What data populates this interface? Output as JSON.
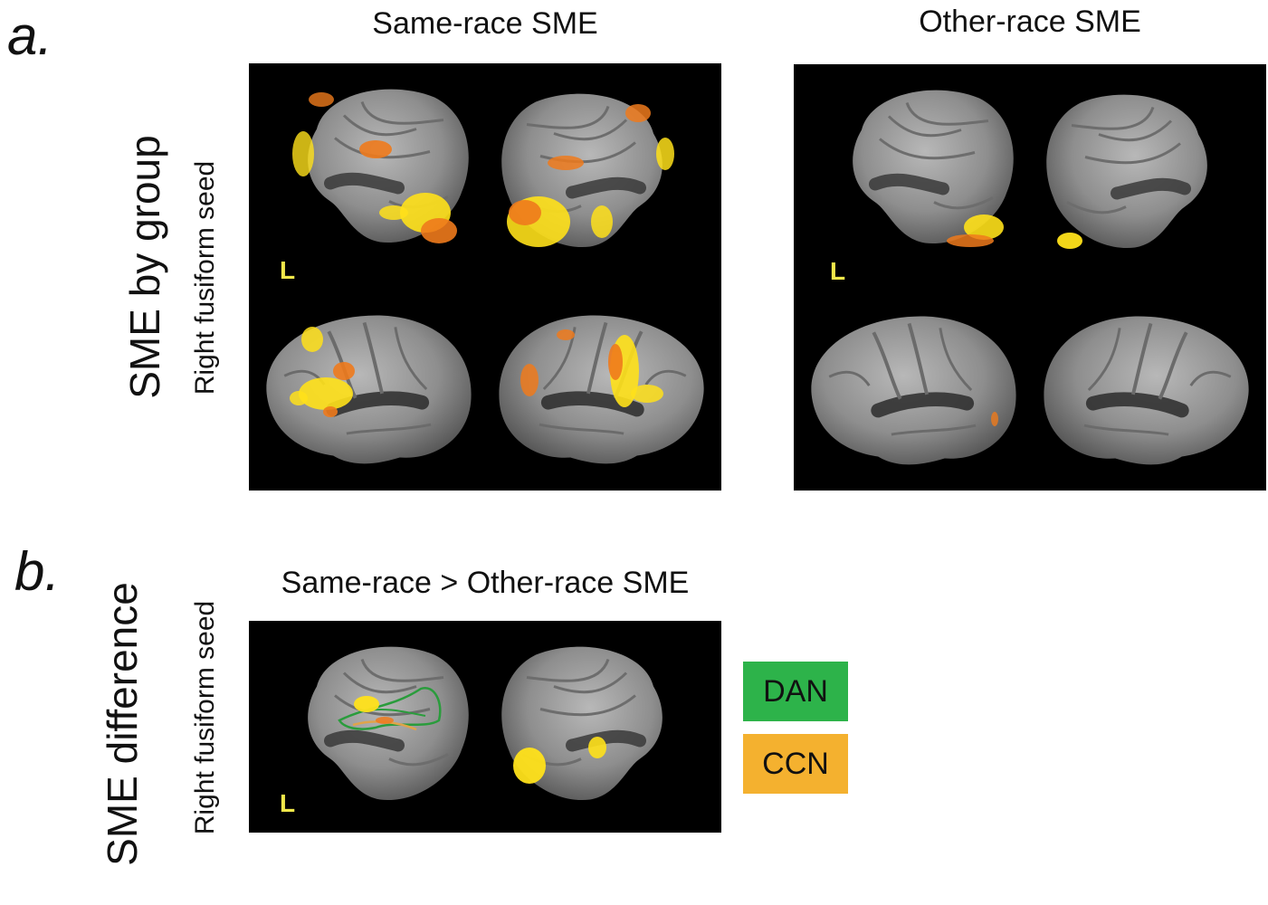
{
  "panel_a": {
    "letter": "a.",
    "row_label": "SME by group",
    "seed_label": "Right fusiform seed",
    "col_titles": [
      "Same-race SME",
      "Other-race SME"
    ],
    "hemisphere_marker": "L"
  },
  "panel_b": {
    "letter": "b.",
    "row_label": "SME difference",
    "seed_label": "Right fusiform seed",
    "title": "Same-race > Other-race SME",
    "hemisphere_marker": "L"
  },
  "legend": {
    "items": [
      {
        "label": "DAN",
        "color": "#2db34a"
      },
      {
        "label": "CCN",
        "color": "#f4b12f"
      }
    ]
  },
  "colors": {
    "brain": "#8d8d8d",
    "activation_high": "#ffe11a",
    "activation_low": "#ee7a1c",
    "dan_outline": "#2a9c3c",
    "ccn_outline": "#e0a44a",
    "background": "#000000"
  },
  "icons": {
    "brain_views": "brain-surface-icon"
  }
}
